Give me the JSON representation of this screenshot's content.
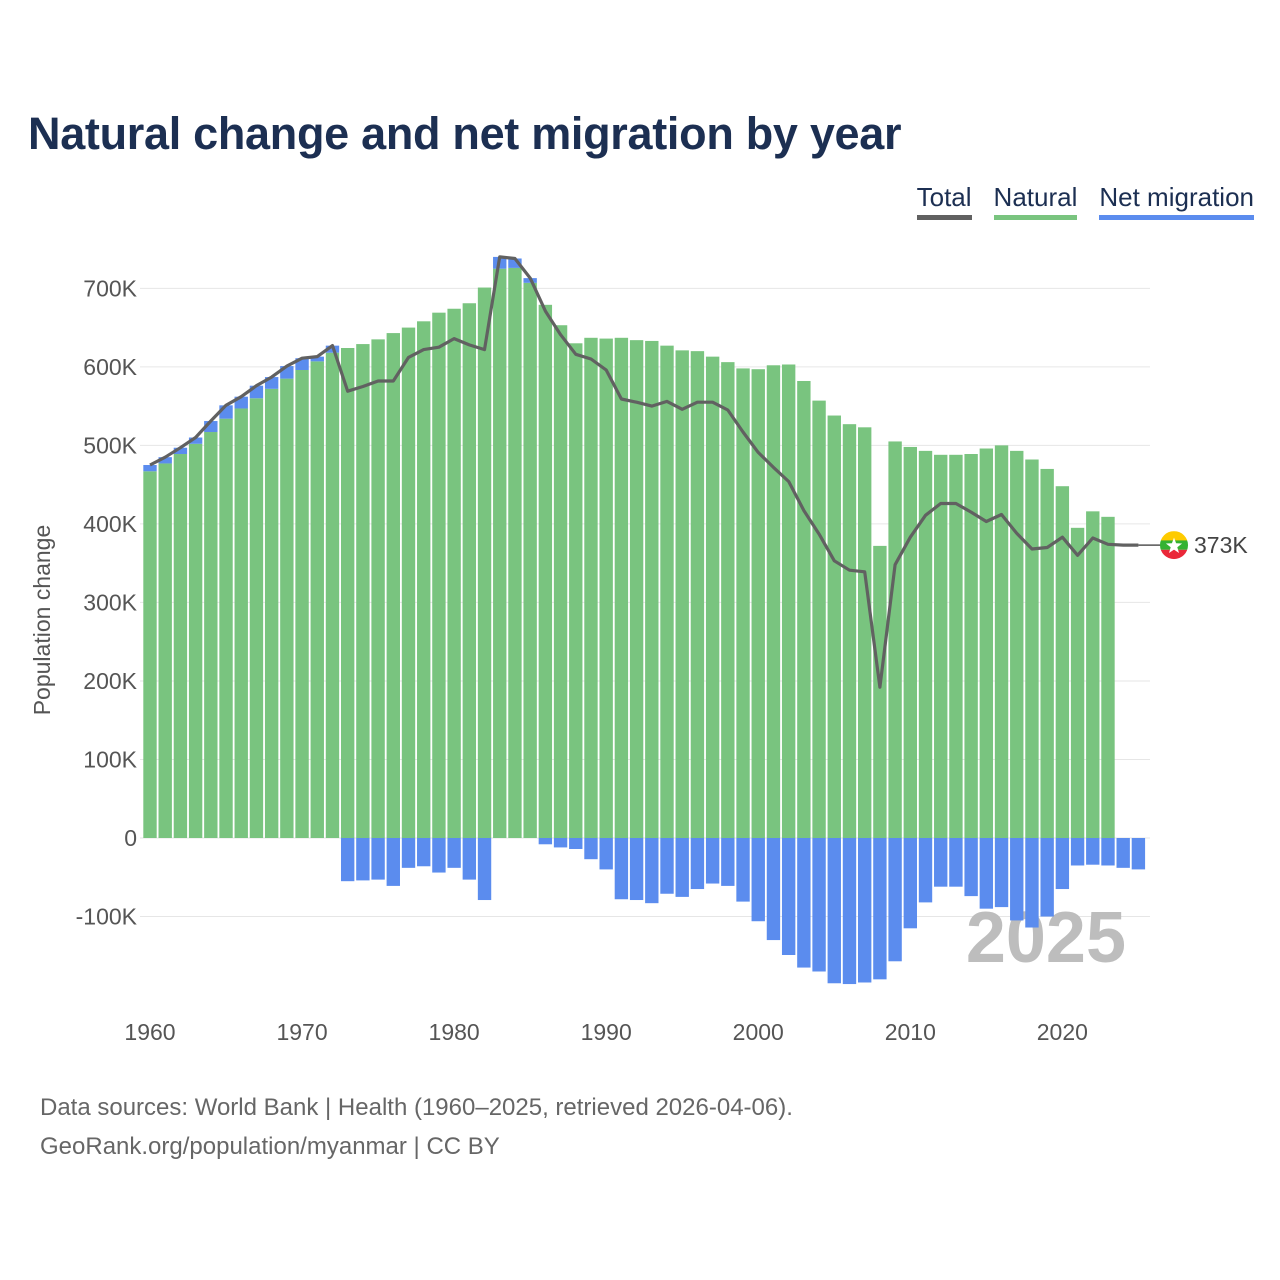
{
  "page": {
    "title": "Natural change and net migration by year",
    "source_line1": "Data sources: World Bank | Health (1960–2025, retrieved 2026-04-06).",
    "source_line2": "GeoRank.org/population/myanmar | CC BY"
  },
  "legend": [
    {
      "key": "total",
      "label": "Total"
    },
    {
      "key": "natural",
      "label": "Natural"
    },
    {
      "key": "net",
      "label": "Net migration"
    }
  ],
  "colors": {
    "total": "#616161",
    "natural": "#79c47f",
    "net": "#5b8cee",
    "grid": "#e6e6e6"
  },
  "chart_data": {
    "type": "bar",
    "title": "Natural change and net migration by year",
    "xlabel": "",
    "ylabel": "Population change",
    "ylim": [
      -215000,
      740000
    ],
    "y_ticks": [
      -100000,
      0,
      100000,
      200000,
      300000,
      400000,
      500000,
      600000,
      700000
    ],
    "y_tick_labels": [
      "-100K",
      "0",
      "100K",
      "200K",
      "300K",
      "400K",
      "500K",
      "600K",
      "700K"
    ],
    "x_ticks": [
      1960,
      1970,
      1980,
      1990,
      2000,
      2010,
      2020
    ],
    "x_tick_labels": [
      "1960",
      "1970",
      "1980",
      "1990",
      "2000",
      "2010",
      "2020"
    ],
    "end_label": "373K",
    "watermark": "2025",
    "flag": "myanmar-flag-icon",
    "years": [
      1960,
      1961,
      1962,
      1963,
      1964,
      1965,
      1966,
      1967,
      1968,
      1969,
      1970,
      1971,
      1972,
      1973,
      1974,
      1975,
      1976,
      1977,
      1978,
      1979,
      1980,
      1981,
      1982,
      1983,
      1984,
      1985,
      1986,
      1987,
      1988,
      1989,
      1990,
      1991,
      1992,
      1993,
      1994,
      1995,
      1996,
      1997,
      1998,
      1999,
      2000,
      2001,
      2002,
      2003,
      2004,
      2005,
      2006,
      2007,
      2008,
      2009,
      2010,
      2011,
      2012,
      2013,
      2014,
      2015,
      2016,
      2017,
      2018,
      2019,
      2020,
      2021,
      2022,
      2023,
      2024,
      2025
    ],
    "series": [
      {
        "name": "Natural",
        "values": [
          467000,
          477000,
          489000,
          502000,
          517000,
          534000,
          547000,
          560000,
          572000,
          585000,
          596000,
          607000,
          618000,
          624000,
          629000,
          635000,
          643000,
          650000,
          658000,
          669000,
          674000,
          681000,
          701000,
          725000,
          726000,
          707000,
          679000,
          653000,
          630000,
          637000,
          636000,
          637000,
          634000,
          633000,
          627000,
          621000,
          620000,
          613000,
          606000,
          598000,
          597000,
          602000,
          603000,
          582000,
          557000,
          538000,
          527000,
          523000,
          372000,
          505000,
          498000,
          493000,
          488000,
          488000,
          489000,
          496000,
          500000,
          493000,
          482000,
          470000,
          448000,
          395000,
          416000,
          409000,
          0,
          0
        ]
      },
      {
        "name": "Net migration",
        "values": [
          8000,
          8000,
          8000,
          8000,
          14000,
          17000,
          15000,
          16000,
          15000,
          16000,
          15000,
          6000,
          9000,
          -55000,
          -54000,
          -53000,
          -61000,
          -38000,
          -36000,
          -44000,
          -38000,
          -53000,
          -79000,
          15000,
          12000,
          6000,
          -8000,
          -12000,
          -14000,
          -27000,
          -40000,
          -78000,
          -79000,
          -83000,
          -71000,
          -75000,
          -65000,
          -58000,
          -61000,
          -81000,
          -106000,
          -130000,
          -149000,
          -165000,
          -170000,
          -185000,
          -186000,
          -184000,
          -180000,
          -157000,
          -115000,
          -82000,
          -62000,
          -62000,
          -74000,
          -90000,
          -88000,
          -105000,
          -114000,
          -100000,
          -65000,
          -35000,
          -34000,
          -35000,
          -38000,
          -40000
        ]
      },
      {
        "name": "Total",
        "values": [
          475000,
          485000,
          497000,
          510000,
          531000,
          551000,
          562000,
          576000,
          587000,
          601000,
          611000,
          613000,
          627000,
          569000,
          575000,
          582000,
          582000,
          612000,
          622000,
          625000,
          636000,
          628000,
          622000,
          740000,
          738000,
          713000,
          671000,
          641000,
          616000,
          610000,
          596000,
          559000,
          555000,
          550000,
          556000,
          546000,
          555000,
          555000,
          545000,
          517000,
          491000,
          472000,
          454000,
          417000,
          387000,
          353000,
          341000,
          339000,
          192000,
          348000,
          383000,
          411000,
          426000,
          426000,
          415000,
          403000,
          412000,
          388000,
          368000,
          370000,
          383000,
          360000,
          382000,
          374000,
          373000,
          373000
        ]
      }
    ]
  }
}
